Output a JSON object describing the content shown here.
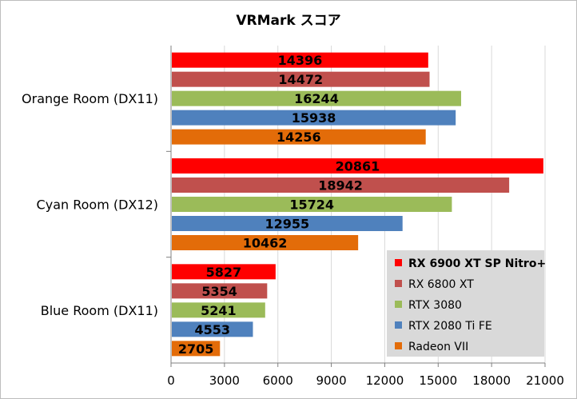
{
  "chart_data": {
    "type": "bar",
    "orientation": "horizontal",
    "title": "VRMark スコア",
    "xlabel": "",
    "ylabel": "",
    "categories": [
      "Orange Room (DX11)",
      "Cyan Room (DX12)",
      "Blue Room (DX11)"
    ],
    "xlim": [
      0,
      21000
    ],
    "xticks": [
      0,
      3000,
      6000,
      9000,
      12000,
      15000,
      18000,
      21000
    ],
    "grid": true,
    "legend_position": "bottom-right",
    "series": [
      {
        "name": "RX 6900 XT SP Nitro+",
        "color": "#ff0000",
        "bold": true,
        "values": [
          14396,
          20861,
          5827
        ]
      },
      {
        "name": "RX 6800 XT",
        "color": "#c0504d",
        "bold": false,
        "values": [
          14472,
          18942,
          5354
        ]
      },
      {
        "name": "RTX 3080",
        "color": "#9bbb59",
        "bold": false,
        "values": [
          16244,
          15724,
          5241
        ]
      },
      {
        "name": "RTX 2080 Ti FE",
        "color": "#4f81bd",
        "bold": false,
        "values": [
          15938,
          12955,
          4553
        ]
      },
      {
        "name": "Radeon VII",
        "color": "#e36c09",
        "bold": false,
        "values": [
          14256,
          10462,
          2705
        ]
      }
    ]
  }
}
